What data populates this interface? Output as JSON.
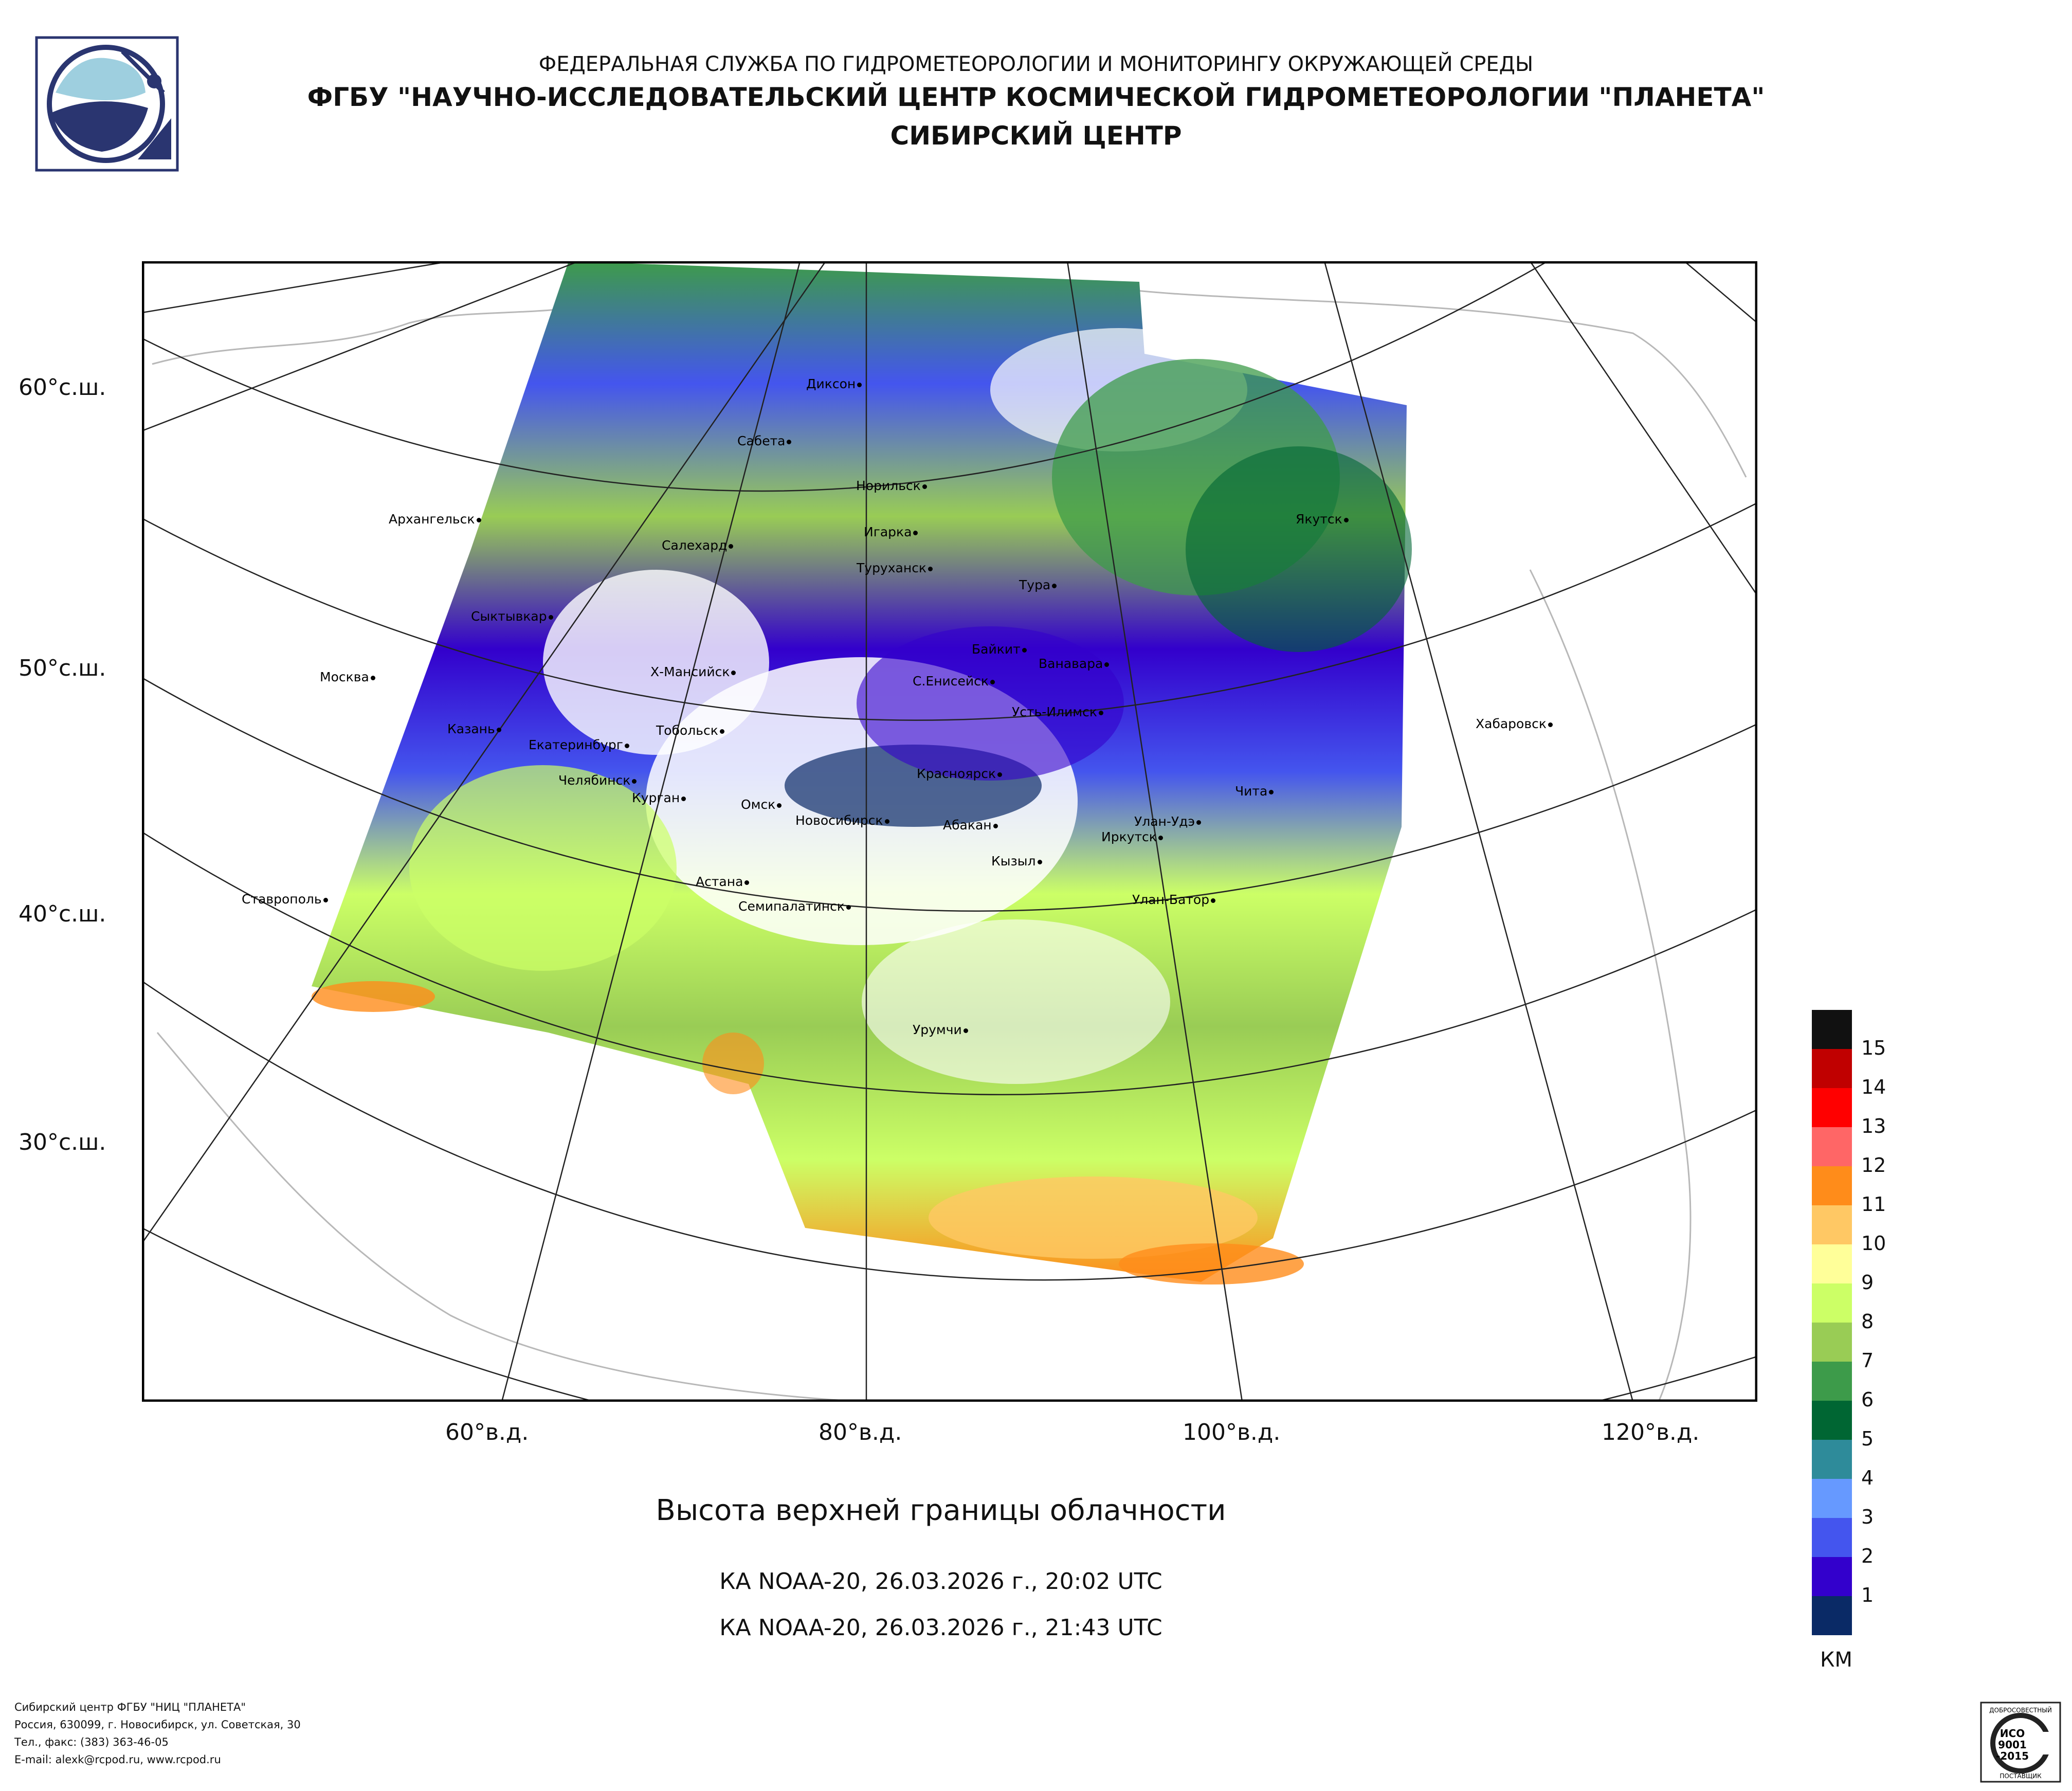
{
  "header": {
    "line1": "ФЕДЕРАЛЬНАЯ СЛУЖБА ПО ГИДРОМЕТЕОРОЛОГИИ И МОНИТОРИНГУ ОКРУЖАЮЩЕЙ СРЕДЫ",
    "line2": "ФГБУ \"НАУЧНО-ИССЛЕДОВАТЕЛЬСКИЙ ЦЕНТР КОСМИЧЕСКОЙ ГИДРОМЕТЕОРОЛОГИИ \"ПЛАНЕТА\"",
    "line3": "СИБИРСКИЙ ЦЕНТР"
  },
  "latitude_labels": [
    "60°с.ш.",
    "50°с.ш.",
    "40°с.ш.",
    "30°с.ш."
  ],
  "longitude_labels": [
    "60°в.д.",
    "80°в.д.",
    "100°в.д.",
    "120°в.д."
  ],
  "cities": [
    "Диксон",
    "Сабета",
    "Норильск",
    "Архангельск",
    "Салехард",
    "Игарка",
    "Туруханск",
    "Якутск",
    "Тура",
    "Сыктывкар",
    "Байкит",
    "Ванавара",
    "Москва",
    "Х-Мансийск",
    "С.Енисейск",
    "Усть-Илимск",
    "Хабаровск",
    "Казань",
    "Тобольск",
    "Екатеринбург",
    "Красноярск",
    "Челябинск",
    "Курган",
    "Омск",
    "Чита",
    "Новосибирск",
    "Абакан",
    "Улан-Удэ",
    "Иркутск",
    "Кызыл",
    "Астана",
    "Ставрополь",
    "Семипалатинск",
    "Улан-Батор",
    "Урумчи"
  ],
  "legend": {
    "labels": [
      "15",
      "14",
      "13",
      "12",
      "11",
      "10",
      "9",
      "8",
      "7",
      "6",
      "5",
      "4",
      "3",
      "2",
      "1"
    ],
    "colors": [
      "#111111",
      "#c00000",
      "#ff0000",
      "#ff6666",
      "#ff8c1a",
      "#ffc864",
      "#ffff99",
      "#ccff66",
      "#99cc55",
      "#3d9b4a",
      "#006633",
      "#2e8b9a",
      "#6699ff",
      "#4455ee",
      "#3300cc",
      "#0a2a66"
    ],
    "unit": "КМ"
  },
  "product_title": "Высота верхней границы облачности",
  "passes": [
    "КА NOAA-20, 26.03.2026 г., 20:02 UTC",
    "КА NOAA-20, 26.03.2026 г., 21:43 UTC"
  ],
  "footer": [
    "Сибирский центр ФГБУ \"НИЦ \"ПЛАНЕТА\"",
    "Россия, 630099, г. Новосибирск, ул. Советская, 30",
    "Тел., факс: (383) 363-46-05",
    "E-mail: alexk@rcpod.ru, www.rcpod.ru"
  ],
  "certificate": {
    "top": "ДОБРОСОВЕСТНЫЙ",
    "line1": "ИСО",
    "line2": "9001",
    "line3": "-2015",
    "bottom": "ПОСТАВЩИК"
  }
}
